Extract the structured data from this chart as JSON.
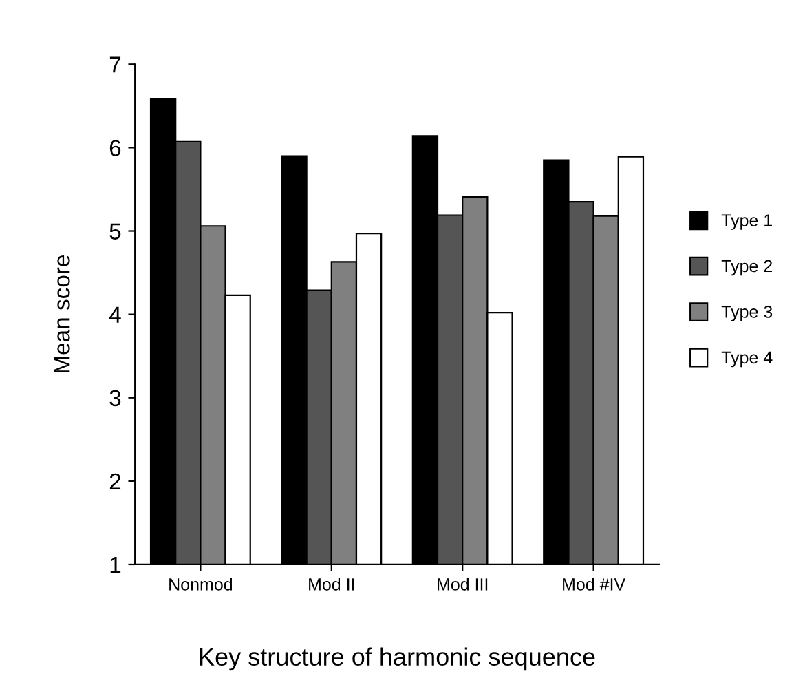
{
  "chart_data": {
    "type": "bar",
    "xlabel": "Key structure of harmonic sequence",
    "ylabel": "Mean score",
    "categories": [
      "Nonmod",
      "Mod II",
      "Mod III",
      "Mod #IV"
    ],
    "series": [
      {
        "name": "Type 1",
        "color": "#000000",
        "values": [
          6.58,
          5.9,
          6.14,
          5.85
        ]
      },
      {
        "name": "Type 2",
        "color": "#555555",
        "values": [
          6.07,
          4.29,
          5.19,
          5.35
        ]
      },
      {
        "name": "Type 3",
        "color": "#808080",
        "values": [
          5.06,
          4.63,
          5.41,
          5.18
        ]
      },
      {
        "name": "Type 4",
        "color": "#ffffff",
        "values": [
          4.23,
          4.97,
          4.02,
          5.89
        ]
      }
    ],
    "ylim": [
      1,
      7
    ],
    "yticks": [
      1,
      2,
      3,
      4,
      5,
      6,
      7
    ],
    "grid": false,
    "legend": "right"
  }
}
